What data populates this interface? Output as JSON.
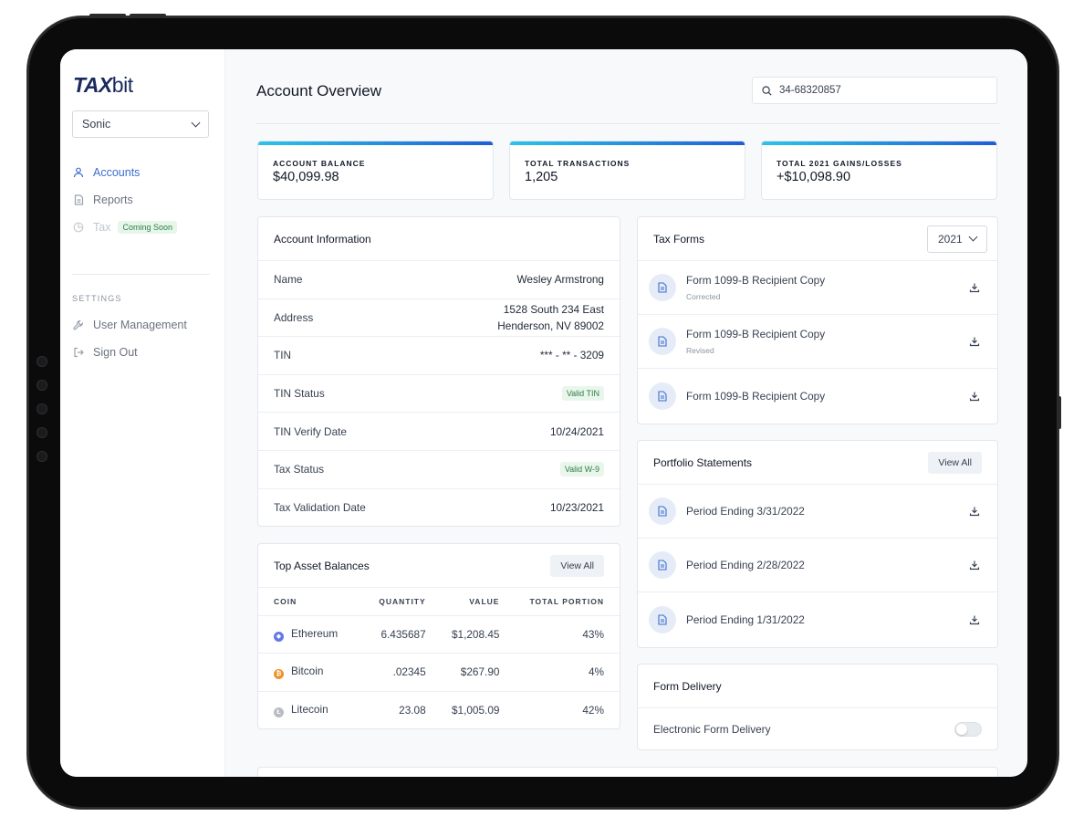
{
  "brand": {
    "logo_tax": "TAX",
    "logo_bit": "bit"
  },
  "sidebar": {
    "org_select": "Sonic",
    "items": [
      {
        "label": "Accounts"
      },
      {
        "label": "Reports"
      },
      {
        "label": "Tax",
        "badge": "Coming Soon"
      }
    ],
    "settings_title": "SETTINGS",
    "settings_items": [
      {
        "label": "User Management"
      },
      {
        "label": "Sign Out"
      }
    ]
  },
  "header": {
    "title": "Account Overview",
    "search_value": "34-68320857"
  },
  "stats": [
    {
      "label": "ACCOUNT BALANCE",
      "value": "$40,099.98"
    },
    {
      "label": "TOTAL TRANSACTIONS",
      "value": "1,205"
    },
    {
      "label": "TOTAL 2021 GAINS/LOSSES",
      "value": "+$10,098.90"
    }
  ],
  "account_info": {
    "title": "Account Information",
    "rows": [
      {
        "label": "Name",
        "value": "Wesley Armstrong"
      },
      {
        "label": "Address",
        "value_line1": "1528 South 234 East",
        "value_line2": "Henderson, NV 89002"
      },
      {
        "label": "TIN",
        "value": "*** - ** - 3209"
      },
      {
        "label": "TIN Status",
        "badge": "Valid TIN"
      },
      {
        "label": "TIN Verify Date",
        "value": "10/24/2021"
      },
      {
        "label": "Tax Status",
        "badge": "Valid W-9"
      },
      {
        "label": "Tax Validation Date",
        "value": "10/23/2021"
      }
    ]
  },
  "assets": {
    "title": "Top Asset Balances",
    "view_all": "View All",
    "columns": [
      "COIN",
      "QUANTITY",
      "VALUE",
      "TOTAL PORTION"
    ],
    "rows": [
      {
        "coin": "Ethereum",
        "quantity": "6.435687",
        "value": "$1,208.45",
        "portion": "43%",
        "color": "#6279e6"
      },
      {
        "coin": "Bitcoin",
        "quantity": ".02345",
        "value": "$267.90",
        "portion": "4%",
        "color": "#f0932b"
      },
      {
        "coin": "Litecoin",
        "quantity": "23.08",
        "value": "$1,005.09",
        "portion": "42%",
        "color": "#b9bcc2"
      }
    ]
  },
  "tax_forms": {
    "title": "Tax Forms",
    "year": "2021",
    "items": [
      {
        "title": "Form 1099-B Recipient Copy",
        "sub": "Corrected"
      },
      {
        "title": "Form 1099-B Recipient Copy",
        "sub": "Revised"
      },
      {
        "title": "Form 1099-B Recipient Copy",
        "sub": ""
      }
    ]
  },
  "portfolio": {
    "title": "Portfolio Statements",
    "view_all": "View All",
    "items": [
      {
        "title": "Period Ending 3/31/2022"
      },
      {
        "title": "Period Ending 2/28/2022"
      },
      {
        "title": "Period Ending 1/31/2022"
      }
    ]
  },
  "form_delivery": {
    "title": "Form Delivery",
    "toggle_label": "Electronic Form Delivery",
    "toggle_on": false
  },
  "colors": {
    "accent": "#3b6fd1",
    "brand": "#1a2a5e",
    "gradient_start": "#2bc4e8",
    "gradient_end": "#1f5ed6"
  }
}
